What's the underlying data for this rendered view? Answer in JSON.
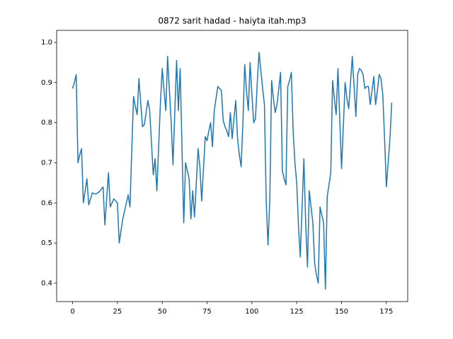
{
  "chart_data": {
    "type": "line",
    "title": "0872 sarit hadad - haiyta itah.mp3",
    "xlim": [
      -8.9,
      186.9
    ],
    "xticks": [
      0,
      25,
      50,
      75,
      100,
      125,
      150,
      175
    ],
    "ylim": [
      0.354,
      1.03
    ],
    "yticks": [
      0.4,
      0.5,
      0.6,
      0.7,
      0.8,
      0.9,
      {
        "value": 1,
        "label": "1.0"
      }
    ],
    "grid": false,
    "series": [
      {
        "color": "#1f77b4",
        "values": [
          0.885,
          0.9,
          0.92,
          0.7,
          0.72,
          0.735,
          0.6,
          0.63,
          0.66,
          0.595,
          0.61,
          0.625,
          0.623,
          0.622,
          0.625,
          0.628,
          0.634,
          0.64,
          0.545,
          0.61,
          0.675,
          0.59,
          0.6,
          0.61,
          0.605,
          0.6,
          0.5,
          0.53,
          0.56,
          0.58,
          0.6,
          0.62,
          0.59,
          0.73,
          0.865,
          0.84,
          0.82,
          0.91,
          0.85,
          0.79,
          0.795,
          0.825,
          0.855,
          0.83,
          0.75,
          0.67,
          0.71,
          0.63,
          0.74,
          0.85,
          0.935,
          0.88,
          0.83,
          0.965,
          0.88,
          0.8,
          0.695,
          0.825,
          0.955,
          0.83,
          0.935,
          0.74,
          0.55,
          0.7,
          0.68,
          0.66,
          0.56,
          0.63,
          0.565,
          0.65,
          0.735,
          0.69,
          0.605,
          0.685,
          0.765,
          0.755,
          0.78,
          0.8,
          0.74,
          0.83,
          0.86,
          0.89,
          0.885,
          0.88,
          0.805,
          0.79,
          0.78,
          0.765,
          0.825,
          0.76,
          0.81,
          0.855,
          0.76,
          0.72,
          0.69,
          0.8,
          0.945,
          0.88,
          0.83,
          0.95,
          0.87,
          0.8,
          0.81,
          0.9,
          0.975,
          0.93,
          0.885,
          0.845,
          0.6,
          0.495,
          0.61,
          0.905,
          0.86,
          0.825,
          0.845,
          0.885,
          0.925,
          0.68,
          0.66,
          0.645,
          0.89,
          0.905,
          0.925,
          0.78,
          0.7,
          0.65,
          0.54,
          0.465,
          0.59,
          0.71,
          0.55,
          0.44,
          0.63,
          0.59,
          0.55,
          0.45,
          0.42,
          0.4,
          0.59,
          0.57,
          0.55,
          0.385,
          0.615,
          0.645,
          0.675,
          0.905,
          0.86,
          0.82,
          0.935,
          0.81,
          0.685,
          0.79,
          0.9,
          0.86,
          0.835,
          0.9,
          0.965,
          0.89,
          0.815,
          0.92,
          0.935,
          0.93,
          0.92,
          0.885,
          0.89,
          0.89,
          0.845,
          0.88,
          0.915,
          0.845,
          0.88,
          0.92,
          0.91,
          0.87,
          0.76,
          0.64,
          0.7,
          0.76,
          0.85
        ]
      }
    ]
  }
}
